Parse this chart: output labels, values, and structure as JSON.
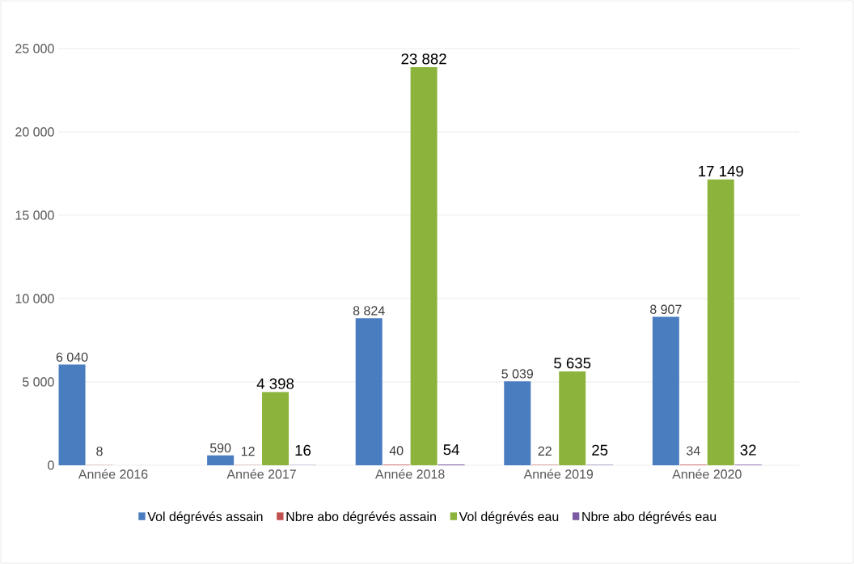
{
  "chart_data": {
    "type": "bar",
    "categories": [
      "Année 2016",
      "Année 2017",
      "Année 2018",
      "Année 2019",
      "Année 2020"
    ],
    "series": [
      {
        "name": "Vol dégrévés assain",
        "color": "#4a7cc0",
        "values": [
          6040,
          590,
          8824,
          5039,
          8907
        ],
        "value_labels": [
          "6 040",
          "590",
          "8 824",
          "5 039",
          "8 907"
        ]
      },
      {
        "name": "Nbre abo dégrévés assain",
        "color": "#c0504d",
        "values": [
          8,
          12,
          40,
          22,
          34
        ],
        "value_labels": [
          "8",
          "12",
          "40",
          "22",
          "34"
        ]
      },
      {
        "name": "Vol dégrévés eau",
        "color": "#8cb43c",
        "values": [
          null,
          4398,
          23882,
          5635,
          17149
        ],
        "value_labels": [
          null,
          "4 398",
          "23 882",
          "5 635",
          "17 149"
        ]
      },
      {
        "name": "Nbre abo dégrévés eau",
        "color": "#7a5aa0",
        "values": [
          null,
          16,
          54,
          25,
          32
        ],
        "value_labels": [
          null,
          "16",
          "54",
          "25",
          "32"
        ]
      }
    ],
    "ylim": [
      0,
      25000
    ],
    "yticks": [
      0,
      {
        "value": 5000,
        "label": "5 000"
      },
      {
        "value": 10000,
        "label": "10 000"
      },
      {
        "value": 15000,
        "label": "15 000"
      },
      {
        "value": 20000,
        "label": "20 000"
      },
      {
        "value": 25000,
        "label": "25 000"
      }
    ],
    "grid": "y",
    "legend": "bottom"
  }
}
